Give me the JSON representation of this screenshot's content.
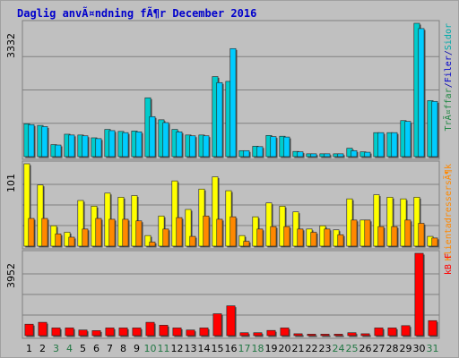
{
  "chart_data": {
    "type": "bar",
    "title": "Daglig anvÃ¤ndning fÃ¶r December 2016",
    "categories": [
      "1",
      "2",
      "3",
      "4",
      "5",
      "6",
      "7",
      "8",
      "9",
      "10",
      "11",
      "12",
      "13",
      "14",
      "15",
      "16",
      "17",
      "18",
      "19",
      "20",
      "21",
      "22",
      "23",
      "24",
      "25",
      "26",
      "27",
      "28",
      "29",
      "30",
      "31"
    ],
    "weekend_days": [
      "3",
      "4",
      "10",
      "11",
      "17",
      "18",
      "24",
      "25",
      "31"
    ],
    "colors": {
      "background": "#c0c0c0",
      "frame": "#808080",
      "grid": "#808080",
      "weekday_label": "#000000",
      "weekend_label": "#227744",
      "title": "#0000cc"
    },
    "panels": [
      {
        "id": "hits",
        "y_max_label": "3332",
        "ylim": [
          0,
          3332
        ],
        "legend": [
          {
            "text": "TrÃ¤ffar",
            "color": "#228844"
          },
          {
            "text": "/",
            "color": "#0000aa"
          },
          {
            "text": "Filer",
            "color": "#0000cc"
          },
          {
            "text": "/",
            "color": "#0000aa"
          },
          {
            "text": "Sidor",
            "color": "#00aaaa"
          }
        ],
        "series": [
          {
            "name": "TrÃ¤ffar",
            "color": "#00cccc",
            "values": [
              820,
              780,
              300,
              560,
              540,
              470,
              680,
              630,
              640,
              1470,
              920,
              680,
              540,
              540,
              2000,
              1880,
              150,
              260,
              530,
              510,
              130,
              70,
              70,
              70,
              210,
              120,
              600,
              600,
              900,
              3332,
              1400
            ]
          },
          {
            "name": "Filer",
            "color": "#00ccff",
            "values": [
              800,
              750,
              290,
              540,
              520,
              450,
              650,
              600,
              620,
              1000,
              850,
              620,
              520,
              520,
              1850,
              2700,
              150,
              250,
              500,
              490,
              120,
              70,
              70,
              70,
              150,
              110,
              600,
              600,
              880,
              3200,
              1380
            ]
          }
        ]
      },
      {
        "id": "visits",
        "y_max_label": "101",
        "ylim": [
          0,
          101
        ],
        "legend": [
          {
            "text": "KlientadressersÃ¶k",
            "color": "#ff8800"
          }
        ],
        "series": [
          {
            "name": "KlientadressersÃ¶k",
            "color": "#ffff00",
            "values": [
              101,
              75,
              25,
              17,
              56,
              49,
              65,
              60,
              62,
              13,
              37,
              80,
              45,
              70,
              85,
              68,
              13,
              36,
              53,
              49,
              42,
              21,
              25,
              20,
              58,
              32,
              63,
              60,
              58,
              60,
              12
            ]
          },
          {
            "name": "",
            "color": "#ff8800",
            "values": [
              34,
              34,
              15,
              11,
              21,
              34,
              33,
              33,
              31,
              5,
              21,
              35,
              12,
              37,
              33,
              36,
              6,
              21,
              24,
              24,
              21,
              17,
              21,
              14,
              32,
              32,
              24,
              24,
              32,
              28,
              10
            ]
          }
        ]
      },
      {
        "id": "kb",
        "y_max_label": "3952",
        "ylim": [
          0,
          3952
        ],
        "legend": [
          {
            "text": "kB F",
            "color": "#ff0000"
          }
        ],
        "series": [
          {
            "name": "kB F",
            "color": "#ff0000",
            "values": [
              550,
              640,
              370,
              370,
              270,
              240,
              370,
              370,
              370,
              640,
              500,
              370,
              270,
              370,
              1050,
              1430,
              140,
              140,
              250,
              370,
              90,
              70,
              70,
              70,
              140,
              90,
              370,
              370,
              480,
              3952,
              720
            ]
          }
        ]
      }
    ]
  }
}
